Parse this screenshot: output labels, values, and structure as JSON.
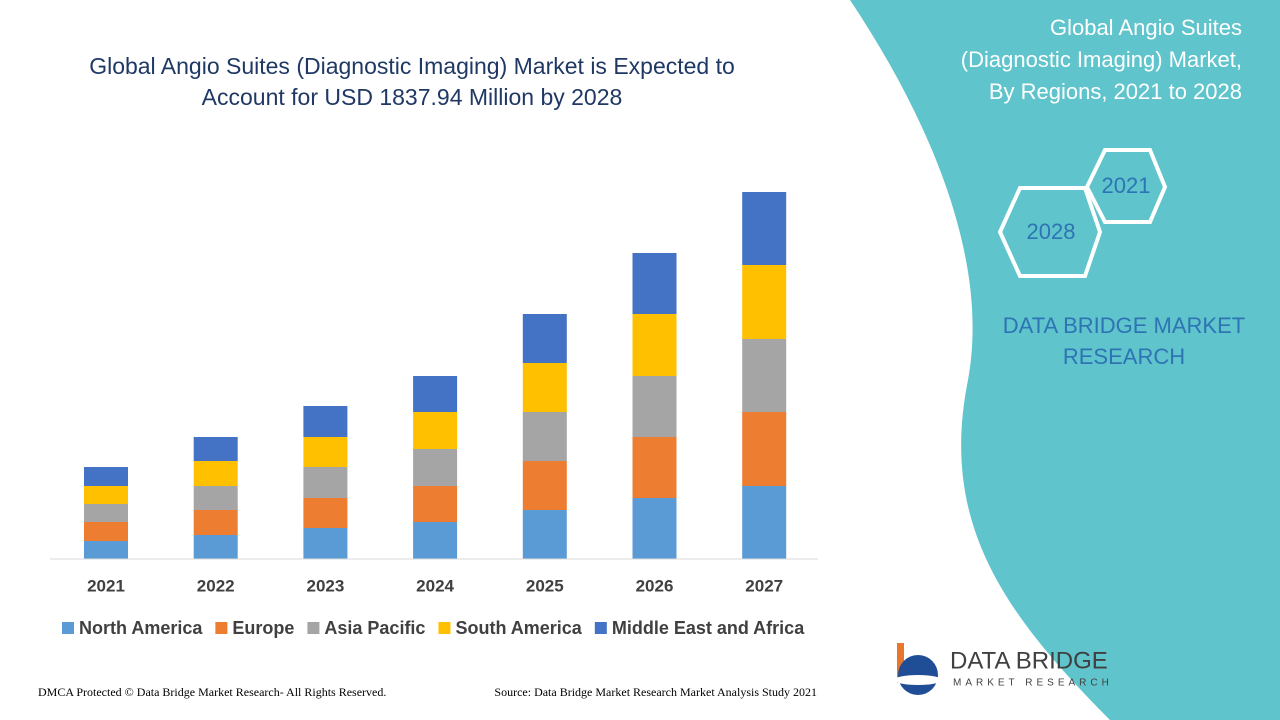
{
  "chart_data": {
    "type": "stacked-bar",
    "title": [
      "Global Angio Suites (Diagnostic Imaging) Market is Expected to",
      "Account for USD 1837.94 Million by 2028"
    ],
    "categories": [
      "2021",
      "2022",
      "2023",
      "2024",
      "2025",
      "2026",
      "2027"
    ],
    "series": [
      {
        "name": "North America",
        "color": "#5b9bd5",
        "values": [
          18,
          24,
          31,
          37,
          49,
          61,
          73
        ]
      },
      {
        "name": "Europe",
        "color": "#ed7d31",
        "values": [
          19,
          25,
          30,
          36,
          49,
          61,
          74
        ]
      },
      {
        "name": "Asia Pacific",
        "color": "#a5a5a5",
        "values": [
          18,
          24,
          31,
          37,
          49,
          61,
          73
        ]
      },
      {
        "name": "South America",
        "color": "#ffc000",
        "values": [
          18,
          25,
          30,
          37,
          49,
          62,
          74
        ]
      },
      {
        "name": "Middle East and Africa",
        "color": "#4472c4",
        "values": [
          19,
          24,
          31,
          36,
          49,
          61,
          73
        ]
      }
    ],
    "ylim": [
      0,
      400
    ],
    "legend": "bottom"
  },
  "side_panel": {
    "title": [
      "Global Angio Suites",
      "(Diagnostic Imaging) Market,",
      "By Regions, 2021 to 2028"
    ],
    "hex_start": "2021",
    "hex_end": "2028",
    "brand": [
      "DATA BRIDGE MARKET",
      "RESEARCH"
    ]
  },
  "logo": {
    "name": "DATA BRIDGE",
    "tagline": "MARKET RESEARCH"
  },
  "footer": {
    "left": "DMCA Protected © Data Bridge Market Research- All Rights Reserved.",
    "right": "Source: Data Bridge Market Research Market Analysis Study 2021"
  }
}
